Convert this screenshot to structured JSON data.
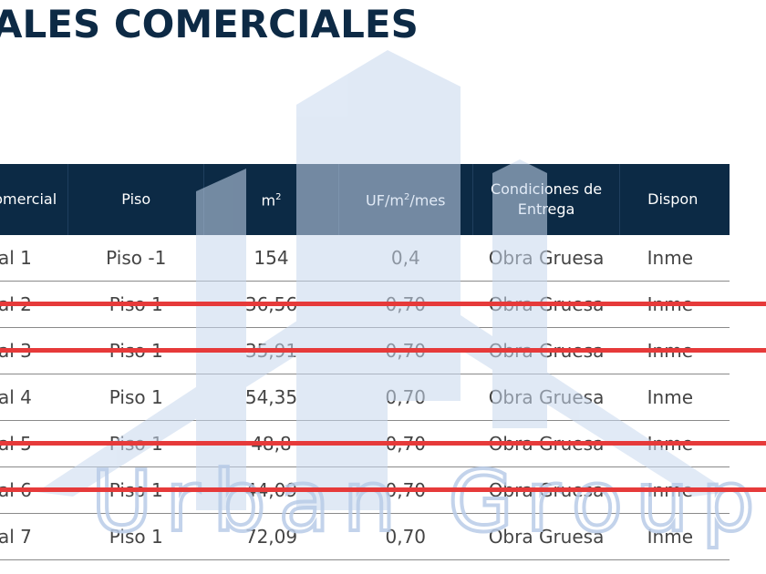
{
  "page": {
    "title": "ALES COMERCIALES"
  },
  "watermark": {
    "text": "Urban Group",
    "icon": "building-silhouette-icon"
  },
  "table": {
    "headers": {
      "col1": "omercial",
      "col2": "Piso",
      "col3_base": "m",
      "col3_sup": "2",
      "col4_base": "UF/m",
      "col4_sup": "2",
      "col4_rest": "/mes",
      "col5": "Condiciones de Entrega",
      "col6": "Dispon"
    },
    "rows": [
      {
        "local": "al 1",
        "piso": "Piso -1",
        "m2": "154",
        "uf": "0,4",
        "condiciones": "Obra Gruesa",
        "disponibilidad": "Inme",
        "struck": false
      },
      {
        "local": "al 2",
        "piso": "Piso 1",
        "m2": "36,56",
        "uf": "0,70",
        "condiciones": "Obra Gruesa",
        "disponibilidad": "Inme",
        "struck": true
      },
      {
        "local": "al 3",
        "piso": "Piso 1",
        "m2": "35,91",
        "uf": "0,70",
        "condiciones": "Obra Gruesa",
        "disponibilidad": "Inme",
        "struck": true
      },
      {
        "local": "al 4",
        "piso": "Piso 1",
        "m2": "54,35",
        "uf": "0,70",
        "condiciones": "Obra Gruesa",
        "disponibilidad": "Inme",
        "struck": false
      },
      {
        "local": "al 5",
        "piso": "Piso 1",
        "m2": "48,8",
        "uf": "0,70",
        "condiciones": "Obra Gruesa",
        "disponibilidad": "Inme",
        "struck": true
      },
      {
        "local": "al 6",
        "piso": "Piso 1",
        "m2": "44,09",
        "uf": "0,70",
        "condiciones": "Obra Gruesa",
        "disponibilidad": "Inme",
        "struck": true
      },
      {
        "local": "al 7",
        "piso": "Piso 1",
        "m2": "72,09",
        "uf": "0,70",
        "condiciones": "Obra Gruesa",
        "disponibilidad": "Inme",
        "struck": false
      }
    ]
  },
  "colors": {
    "header_bg": "#0c2a45",
    "title": "#0d2a45",
    "strike": "#e63a3a",
    "watermark": "#b9cce8"
  }
}
